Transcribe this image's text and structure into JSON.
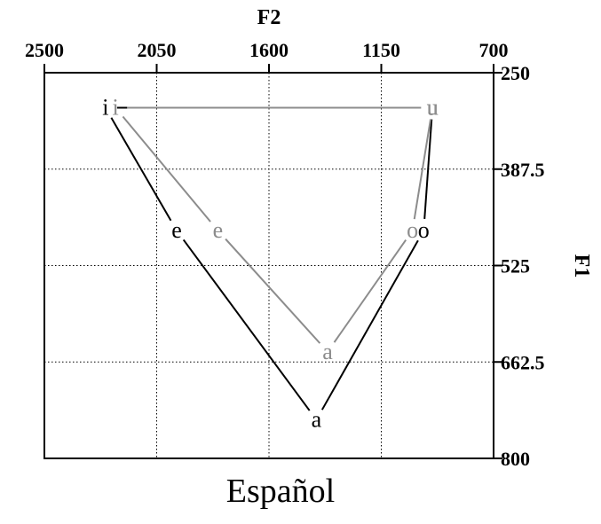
{
  "chart_data": {
    "type": "scatter",
    "subtype": "vowel-chart",
    "title": "Español",
    "x_label": "F2",
    "y_label": "F1",
    "x_axis_position": "top",
    "y_axis_position": "right",
    "x_reversed": true,
    "y_reversed": true,
    "xlim": [
      2500,
      700
    ],
    "ylim": [
      250,
      800
    ],
    "x_ticks": [
      2500,
      2050,
      1600,
      1150,
      700
    ],
    "x_tick_labels": [
      "2500",
      "2050",
      "1600",
      "1150",
      "700"
    ],
    "y_ticks": [
      250,
      387.5,
      525,
      662.5,
      800
    ],
    "y_tick_labels": [
      "250",
      "387.5",
      "525",
      "662.5",
      "800"
    ],
    "grid": "dotted",
    "series": [
      {
        "name": "black",
        "color": "#000000",
        "points": [
          {
            "label": "i",
            "f2": 2255,
            "f1": 300
          },
          {
            "label": "e",
            "f2": 1970,
            "f1": 475
          },
          {
            "label": "a",
            "f2": 1410,
            "f1": 745
          },
          {
            "label": "o",
            "f2": 980,
            "f1": 475
          },
          {
            "label": "u",
            "f2": 945,
            "f1": 300
          }
        ],
        "polygon_order": [
          "i",
          "e",
          "a",
          "o",
          "u"
        ]
      },
      {
        "name": "gray",
        "color": "#8c8c8c",
        "points": [
          {
            "label": "i",
            "f2": 2215,
            "f1": 300
          },
          {
            "label": "e",
            "f2": 1805,
            "f1": 475
          },
          {
            "label": "a",
            "f2": 1365,
            "f1": 648
          },
          {
            "label": "o",
            "f2": 1025,
            "f1": 475
          },
          {
            "label": "u",
            "f2": 945,
            "f1": 300
          }
        ],
        "polygon_order": [
          "i",
          "e",
          "a",
          "o",
          "u"
        ]
      }
    ]
  }
}
